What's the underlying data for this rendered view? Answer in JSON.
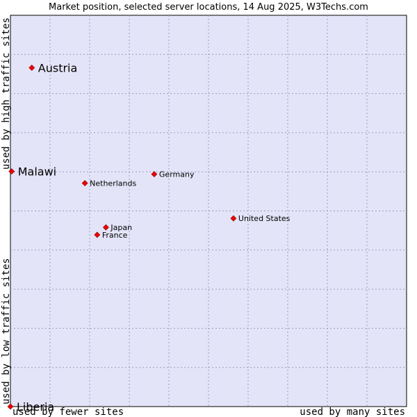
{
  "chart_data": {
    "type": "scatter",
    "title": "Market position, selected server locations, 14 Aug 2025, W3Techs.com",
    "xlabel_left": "used by fewer sites",
    "xlabel_right": "used by many sites",
    "ylabel_top": "used by high traffic sites",
    "ylabel_bottom": "used by low traffic sites",
    "xlim": [
      0,
      100
    ],
    "ylim": [
      0,
      100
    ],
    "grid": true,
    "colors": {
      "plot_background": "#e4e4f8",
      "grid": "#9a9abf",
      "border": "#000000",
      "point": "#ee0000"
    },
    "points": [
      {
        "name": "Austria",
        "x": 5.4,
        "y": 86.6,
        "size": "large"
      },
      {
        "name": "Malawi",
        "x": 0.3,
        "y": 60.1,
        "size": "large"
      },
      {
        "name": "Germany",
        "x": 36.3,
        "y": 59.4,
        "size": "small"
      },
      {
        "name": "Netherlands",
        "x": 18.8,
        "y": 57.1,
        "size": "small"
      },
      {
        "name": "United States",
        "x": 56.3,
        "y": 48.1,
        "size": "small"
      },
      {
        "name": "Japan",
        "x": 24.1,
        "y": 45.8,
        "size": "small"
      },
      {
        "name": "France",
        "x": 21.9,
        "y": 43.9,
        "size": "small"
      },
      {
        "name": "Liberia",
        "x": 0.0,
        "y": 0.0,
        "size": "large"
      }
    ]
  }
}
